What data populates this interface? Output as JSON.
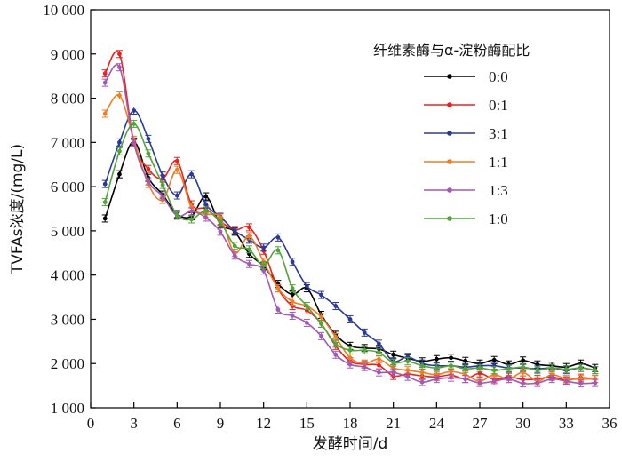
{
  "chart_data": {
    "type": "line",
    "title": "",
    "xlabel": "发酵时间/d",
    "ylabel": "TVFAs浓度/(mg/L)",
    "xlim": [
      0,
      36
    ],
    "ylim": [
      1000,
      10000
    ],
    "xticks": [
      0,
      3,
      6,
      9,
      12,
      15,
      18,
      21,
      24,
      27,
      30,
      33,
      36
    ],
    "xtick_labels": [
      "0",
      "3",
      "6",
      "9",
      "12",
      "15",
      "18",
      "21",
      "24",
      "27",
      "30",
      "33",
      "36"
    ],
    "yticks": [
      1000,
      2000,
      3000,
      4000,
      5000,
      6000,
      7000,
      8000,
      9000,
      10000
    ],
    "ytick_labels": [
      "1 000",
      "2 000",
      "3 000",
      "4 000",
      "5 000",
      "6 000",
      "7 000",
      "8 000",
      "9 000",
      "10 000"
    ],
    "grid": false,
    "legend": {
      "title": "纤维素酶与α-淀粉酶配比",
      "position": "top-right"
    },
    "x": [
      1,
      2,
      3,
      4,
      5,
      6,
      7,
      8,
      9,
      10,
      11,
      12,
      13,
      14,
      15,
      16,
      17,
      18,
      19,
      20,
      21,
      22,
      23,
      24,
      25,
      26,
      27,
      28,
      29,
      30,
      31,
      32,
      33,
      34,
      35
    ],
    "series": [
      {
        "name": "0:0",
        "color": "#000000",
        "values": [
          5280,
          6280,
          7020,
          6200,
          5820,
          5380,
          5330,
          5780,
          5150,
          4980,
          4480,
          4200,
          3800,
          3560,
          3700,
          3100,
          2650,
          2400,
          2350,
          2330,
          2200,
          2120,
          2050,
          2100,
          2130,
          2060,
          2000,
          2080,
          1980,
          2070,
          1980,
          1950,
          1920,
          2000,
          1900
        ]
      },
      {
        "name": "0:1",
        "color": "#e8231d",
        "values": [
          8560,
          9000,
          7000,
          6400,
          6180,
          6580,
          5600,
          5500,
          5220,
          5020,
          5080,
          4550,
          3700,
          3300,
          3200,
          2900,
          2400,
          2050,
          1980,
          1960,
          1720,
          1760,
          1720,
          1700,
          1740,
          1650,
          1780,
          1640,
          1700,
          1640,
          1650,
          1700,
          1620,
          1680,
          1650
        ]
      },
      {
        "name": "3:1",
        "color": "#2b3a97",
        "values": [
          6060,
          7000,
          7720,
          7080,
          6250,
          5800,
          6280,
          5600,
          5320,
          5000,
          4800,
          4620,
          4850,
          4300,
          3750,
          3550,
          3300,
          3000,
          2700,
          2450,
          2050,
          2150,
          2000,
          1950,
          1950,
          1920,
          1950,
          1950,
          1900,
          1900,
          1880,
          1900,
          1850,
          1900,
          1850
        ]
      },
      {
        "name": "1:1",
        "color": "#f07d24",
        "values": [
          7650,
          8060,
          7060,
          6060,
          5700,
          6380,
          5540,
          5380,
          5300,
          4500,
          4880,
          4300,
          3700,
          3400,
          3300,
          3050,
          2600,
          2130,
          2000,
          2100,
          1900,
          1850,
          1800,
          1750,
          1820,
          1750,
          1600,
          1750,
          1650,
          1800,
          1600,
          1750,
          1650,
          1650,
          1650
        ]
      },
      {
        "name": "1:3",
        "color": "#a259b6",
        "values": [
          8350,
          8700,
          6980,
          6120,
          5780,
          5340,
          5440,
          5300,
          4980,
          4440,
          4250,
          4100,
          3220,
          3080,
          2920,
          2620,
          2200,
          1980,
          1920,
          1800,
          1800,
          1700,
          1580,
          1650,
          1680,
          1650,
          1560,
          1600,
          1650,
          1550,
          1560,
          1650,
          1600,
          1550,
          1560
        ]
      },
      {
        "name": "1:0",
        "color": "#52a43a",
        "values": [
          5650,
          6800,
          7420,
          6750,
          6040,
          5360,
          5260,
          5460,
          5200,
          4660,
          4580,
          4220,
          4560,
          3700,
          3300,
          2900,
          2450,
          2300,
          2300,
          2250,
          2020,
          2050,
          1950,
          1900,
          1950,
          1880,
          1900,
          1850,
          1880,
          1920,
          1850,
          1900,
          1870,
          1900,
          1850
        ]
      }
    ]
  }
}
